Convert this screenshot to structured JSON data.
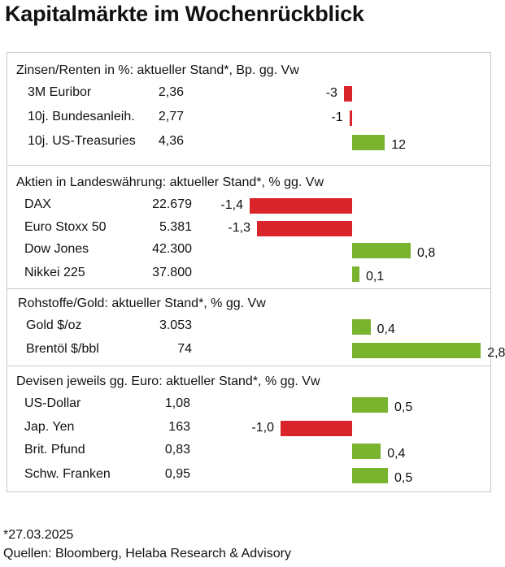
{
  "title": "Kapitalmärkte im Wochenrückblick",
  "chart_data": [
    {
      "type": "bar",
      "title": "Zinsen/Renten in %: aktueller Stand*, Bp. gg. Vw",
      "categories": [
        "3M Euribor",
        "10j. Bundesanleih.",
        "10j. US-Treasuries"
      ],
      "levels": [
        "2,36",
        "2,77",
        "4,36"
      ],
      "values": [
        -3,
        -1,
        12
      ],
      "labels": [
        "-3",
        "-1",
        "12"
      ]
    },
    {
      "type": "bar",
      "title": "Aktien in Landeswährung: aktueller Stand*, % gg. Vw",
      "categories": [
        "DAX",
        "Euro Stoxx 50",
        "Dow Jones",
        "Nikkei 225"
      ],
      "levels": [
        "22.679",
        "5.381",
        "42.300",
        "37.800"
      ],
      "values": [
        -1.4,
        -1.3,
        0.8,
        0.1
      ],
      "labels": [
        "-1,4",
        "-1,3",
        "0,8",
        "0,1"
      ]
    },
    {
      "type": "bar",
      "title": "Rohstoffe/Gold: aktueller Stand*, % gg. Vw",
      "categories": [
        "Gold $/oz",
        "Brentöl $/bbl"
      ],
      "levels": [
        "3.053",
        "74"
      ],
      "values": [
        0.4,
        2.8
      ],
      "labels": [
        "0,4",
        "2,8"
      ]
    },
    {
      "type": "bar",
      "title": "Devisen jeweils gg. Euro: aktueller Stand*, % gg. Vw",
      "categories": [
        "US-Dollar",
        "Jap. Yen",
        "Brit. Pfund",
        "Schw. Franken"
      ],
      "levels": [
        "1,08",
        "163",
        "0,83",
        "0,95"
      ],
      "values": [
        0.5,
        -1.0,
        0.4,
        0.5
      ],
      "labels": [
        "0,5",
        "-1,0",
        "0,4",
        "0,5"
      ]
    }
  ],
  "footer": {
    "date_note": "*27.03.2025",
    "sources": "Quellen: Bloomberg, Helaba Research & Advisory"
  }
}
